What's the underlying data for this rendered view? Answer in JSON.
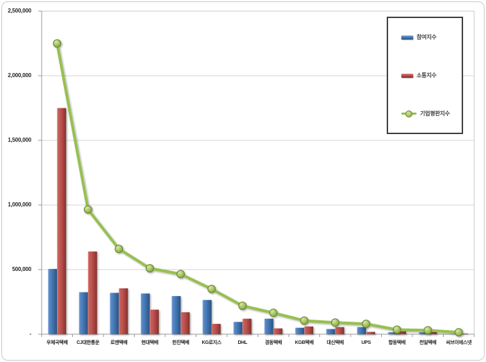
{
  "chart_data": {
    "type": "bar+line",
    "title": "",
    "xlabel": "",
    "ylabel": "",
    "ylim": [
      0,
      2500000
    ],
    "grid": true,
    "legend_position": "top-right",
    "yticks": [
      {
        "value": 0,
        "label": "-"
      },
      {
        "value": 500000,
        "label": "500,000"
      },
      {
        "value": 1000000,
        "label": "1,000,000"
      },
      {
        "value": 1500000,
        "label": "1,500,000"
      },
      {
        "value": 2000000,
        "label": "2,000,000"
      },
      {
        "value": 2500000,
        "label": "2,500,000"
      }
    ],
    "categories": [
      "우체국택배",
      "CJ대한통운",
      "로젠택배",
      "현대택배",
      "한진택배",
      "KG로지스",
      "DHL",
      "경동택배",
      "KGB택배",
      "대신택배",
      "UPS",
      "합동택배",
      "천일택배",
      "씨브이에스넷"
    ],
    "series": [
      {
        "name": "참여지수",
        "type": "bar",
        "color": "#4f81bd",
        "values": [
          505000,
          325000,
          320000,
          315000,
          295000,
          265000,
          95000,
          120000,
          50000,
          40000,
          55000,
          15000,
          15000,
          3000
        ]
      },
      {
        "name": "소통지수",
        "type": "bar",
        "color": "#c0504d",
        "values": [
          1750000,
          640000,
          355000,
          190000,
          170000,
          80000,
          120000,
          45000,
          60000,
          55000,
          18000,
          22000,
          18000,
          5000
        ]
      },
      {
        "name": "기업평판지수",
        "type": "line",
        "color": "#9bbb59",
        "values": [
          2250000,
          965000,
          660000,
          510000,
          465000,
          350000,
          220000,
          165000,
          105000,
          90000,
          80000,
          35000,
          30000,
          15000
        ]
      }
    ]
  },
  "colors": {
    "gridline": "#d4d4d4",
    "axis": "#9a9a9a",
    "plot_border": "#c9c9c9",
    "text": "#262626",
    "legend_border": "#404040",
    "line": "#97c04f"
  }
}
